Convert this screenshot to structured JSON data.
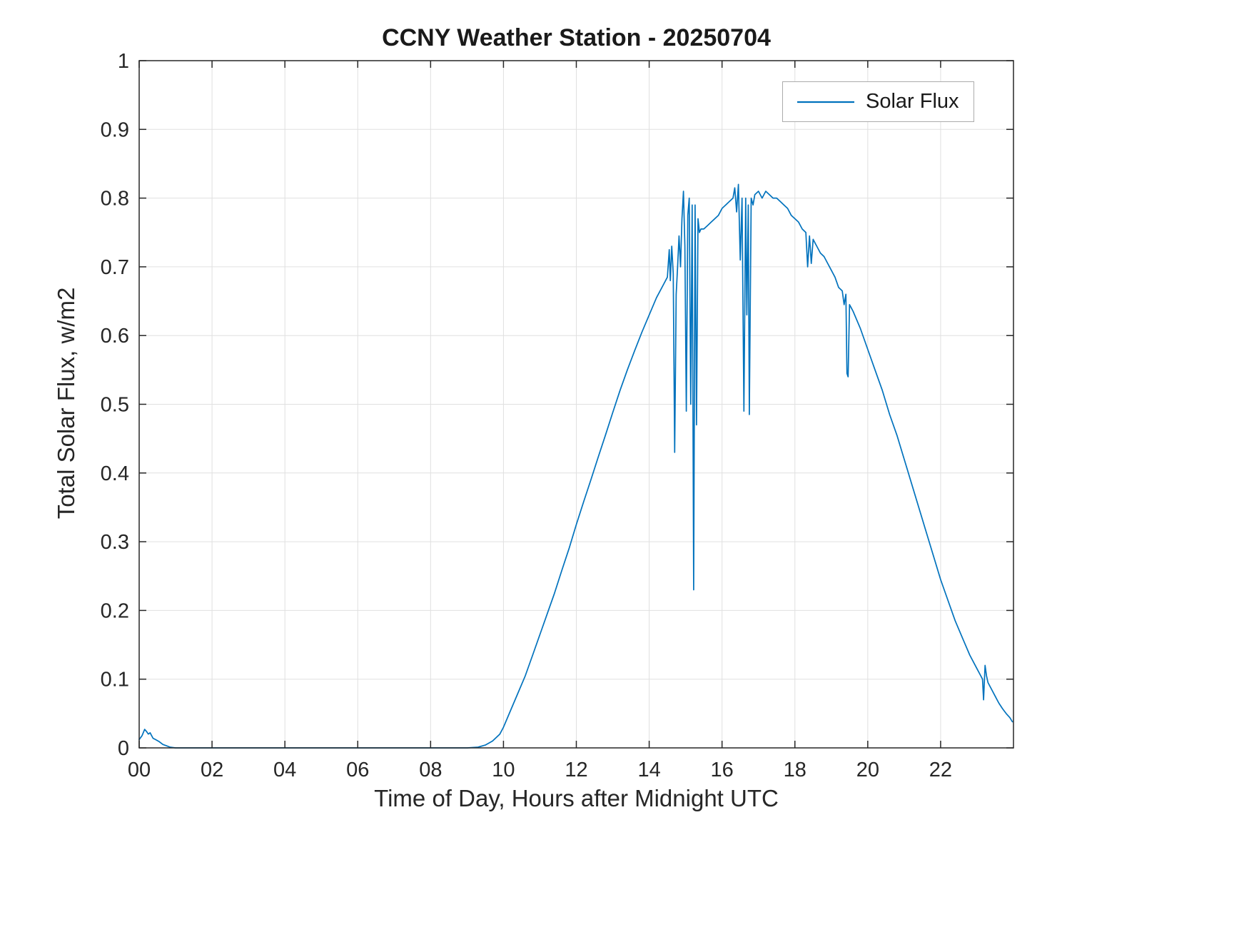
{
  "chart_data": {
    "type": "line",
    "title": "CCNY Weather Station - 20250704",
    "xlabel": "Time of Day, Hours after Midnight UTC",
    "ylabel": "Total Solar Flux, w/m2",
    "xlim": [
      0,
      24
    ],
    "ylim": [
      0,
      1
    ],
    "xticks": [
      0,
      2,
      4,
      6,
      8,
      10,
      12,
      14,
      16,
      18,
      20,
      22
    ],
    "xtick_labels": [
      "00",
      "02",
      "04",
      "06",
      "08",
      "10",
      "12",
      "14",
      "16",
      "18",
      "20",
      "22"
    ],
    "yticks": [
      0,
      0.1,
      0.2,
      0.3,
      0.4,
      0.5,
      0.6,
      0.7,
      0.8,
      0.9,
      1
    ],
    "ytick_labels": [
      "0",
      "0.1",
      "0.2",
      "0.3",
      "0.4",
      "0.5",
      "0.6",
      "0.7",
      "0.8",
      "0.9",
      "1"
    ],
    "grid": true,
    "grid_color": "#e0e0e0",
    "axis_color": "#262626",
    "legend": {
      "position": "top-right",
      "entries": [
        {
          "label": "Solar Flux",
          "color": "#0072BD"
        }
      ]
    },
    "series": [
      {
        "name": "Solar Flux",
        "color": "#0072BD",
        "points": [
          [
            0,
            0.012
          ],
          [
            0.08,
            0.018
          ],
          [
            0.15,
            0.027
          ],
          [
            0.2,
            0.024
          ],
          [
            0.25,
            0.02
          ],
          [
            0.3,
            0.022
          ],
          [
            0.38,
            0.014
          ],
          [
            0.45,
            0.012
          ],
          [
            0.55,
            0.009
          ],
          [
            0.65,
            0.005
          ],
          [
            0.75,
            0.003
          ],
          [
            0.85,
            0.001
          ],
          [
            1,
            0
          ],
          [
            2,
            0
          ],
          [
            3,
            0
          ],
          [
            4,
            0
          ],
          [
            5,
            0
          ],
          [
            6,
            0
          ],
          [
            7,
            0
          ],
          [
            8,
            0
          ],
          [
            9,
            0
          ],
          [
            9.3,
            0.001
          ],
          [
            9.5,
            0.004
          ],
          [
            9.7,
            0.01
          ],
          [
            9.9,
            0.02
          ],
          [
            10,
            0.03
          ],
          [
            10.2,
            0.055
          ],
          [
            10.4,
            0.08
          ],
          [
            10.6,
            0.105
          ],
          [
            10.8,
            0.135
          ],
          [
            11,
            0.165
          ],
          [
            11.2,
            0.195
          ],
          [
            11.4,
            0.225
          ],
          [
            11.6,
            0.258
          ],
          [
            11.8,
            0.29
          ],
          [
            12,
            0.325
          ],
          [
            12.2,
            0.358
          ],
          [
            12.4,
            0.39
          ],
          [
            12.6,
            0.423
          ],
          [
            12.8,
            0.455
          ],
          [
            13,
            0.488
          ],
          [
            13.2,
            0.52
          ],
          [
            13.4,
            0.55
          ],
          [
            13.6,
            0.578
          ],
          [
            13.8,
            0.605
          ],
          [
            14,
            0.63
          ],
          [
            14.2,
            0.655
          ],
          [
            14.4,
            0.675
          ],
          [
            14.5,
            0.685
          ],
          [
            14.55,
            0.725
          ],
          [
            14.58,
            0.68
          ],
          [
            14.62,
            0.73
          ],
          [
            14.66,
            0.69
          ],
          [
            14.7,
            0.43
          ],
          [
            14.74,
            0.66
          ],
          [
            14.78,
            0.7
          ],
          [
            14.82,
            0.745
          ],
          [
            14.86,
            0.7
          ],
          [
            14.9,
            0.77
          ],
          [
            14.94,
            0.81
          ],
          [
            14.98,
            0.73
          ],
          [
            15.02,
            0.49
          ],
          [
            15.06,
            0.775
          ],
          [
            15.1,
            0.8
          ],
          [
            15.14,
            0.5
          ],
          [
            15.18,
            0.79
          ],
          [
            15.22,
            0.23
          ],
          [
            15.26,
            0.79
          ],
          [
            15.3,
            0.47
          ],
          [
            15.34,
            0.77
          ],
          [
            15.38,
            0.75
          ],
          [
            15.42,
            0.755
          ],
          [
            15.5,
            0.755
          ],
          [
            15.6,
            0.76
          ],
          [
            15.7,
            0.765
          ],
          [
            15.8,
            0.77
          ],
          [
            15.9,
            0.775
          ],
          [
            16,
            0.785
          ],
          [
            16.1,
            0.79
          ],
          [
            16.2,
            0.795
          ],
          [
            16.3,
            0.8
          ],
          [
            16.35,
            0.815
          ],
          [
            16.4,
            0.78
          ],
          [
            16.45,
            0.82
          ],
          [
            16.5,
            0.71
          ],
          [
            16.55,
            0.8
          ],
          [
            16.6,
            0.49
          ],
          [
            16.65,
            0.8
          ],
          [
            16.68,
            0.63
          ],
          [
            16.72,
            0.79
          ],
          [
            16.75,
            0.485
          ],
          [
            16.8,
            0.8
          ],
          [
            16.85,
            0.79
          ],
          [
            16.9,
            0.805
          ],
          [
            17,
            0.81
          ],
          [
            17.1,
            0.8
          ],
          [
            17.2,
            0.81
          ],
          [
            17.3,
            0.805
          ],
          [
            17.4,
            0.8
          ],
          [
            17.5,
            0.8
          ],
          [
            17.6,
            0.795
          ],
          [
            17.7,
            0.79
          ],
          [
            17.8,
            0.785
          ],
          [
            17.9,
            0.775
          ],
          [
            18,
            0.77
          ],
          [
            18.1,
            0.765
          ],
          [
            18.2,
            0.755
          ],
          [
            18.3,
            0.75
          ],
          [
            18.35,
            0.7
          ],
          [
            18.4,
            0.745
          ],
          [
            18.45,
            0.705
          ],
          [
            18.5,
            0.74
          ],
          [
            18.55,
            0.735
          ],
          [
            18.6,
            0.73
          ],
          [
            18.7,
            0.72
          ],
          [
            18.8,
            0.715
          ],
          [
            18.9,
            0.705
          ],
          [
            19,
            0.695
          ],
          [
            19.1,
            0.685
          ],
          [
            19.2,
            0.67
          ],
          [
            19.3,
            0.665
          ],
          [
            19.35,
            0.645
          ],
          [
            19.4,
            0.66
          ],
          [
            19.43,
            0.545
          ],
          [
            19.46,
            0.54
          ],
          [
            19.5,
            0.645
          ],
          [
            19.55,
            0.64
          ],
          [
            19.6,
            0.635
          ],
          [
            19.8,
            0.61
          ],
          [
            20,
            0.58
          ],
          [
            20.2,
            0.55
          ],
          [
            20.4,
            0.52
          ],
          [
            20.6,
            0.485
          ],
          [
            20.8,
            0.455
          ],
          [
            21,
            0.42
          ],
          [
            21.2,
            0.385
          ],
          [
            21.4,
            0.35
          ],
          [
            21.6,
            0.315
          ],
          [
            21.8,
            0.28
          ],
          [
            22,
            0.245
          ],
          [
            22.2,
            0.215
          ],
          [
            22.4,
            0.185
          ],
          [
            22.6,
            0.16
          ],
          [
            22.8,
            0.135
          ],
          [
            23,
            0.115
          ],
          [
            23.1,
            0.105
          ],
          [
            23.15,
            0.1
          ],
          [
            23.18,
            0.07
          ],
          [
            23.22,
            0.12
          ],
          [
            23.26,
            0.105
          ],
          [
            23.3,
            0.095
          ],
          [
            23.4,
            0.085
          ],
          [
            23.5,
            0.075
          ],
          [
            23.6,
            0.065
          ],
          [
            23.7,
            0.057
          ],
          [
            23.8,
            0.05
          ],
          [
            23.9,
            0.044
          ],
          [
            23.97,
            0.038
          ]
        ]
      }
    ]
  }
}
